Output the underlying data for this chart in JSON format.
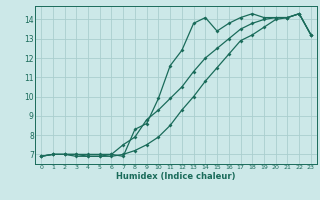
{
  "xlabel": "Humidex (Indice chaleur)",
  "bg_color": "#cce8e8",
  "grid_color": "#aacece",
  "line_color": "#1a6b5a",
  "xlim": [
    -0.5,
    23.5
  ],
  "ylim": [
    6.5,
    14.7
  ],
  "xticks": [
    0,
    1,
    2,
    3,
    4,
    5,
    6,
    7,
    8,
    9,
    10,
    11,
    12,
    13,
    14,
    15,
    16,
    17,
    18,
    19,
    20,
    21,
    22,
    23
  ],
  "yticks": [
    7,
    8,
    9,
    10,
    11,
    12,
    13,
    14
  ],
  "line1_x": [
    0,
    1,
    2,
    3,
    4,
    5,
    6,
    7,
    8,
    9,
    10,
    11,
    12,
    13,
    14,
    15,
    16,
    17,
    18,
    19,
    20,
    21,
    22,
    23
  ],
  "line1_y": [
    6.9,
    7.0,
    7.0,
    6.9,
    6.9,
    6.9,
    7.0,
    6.9,
    8.3,
    8.6,
    9.9,
    11.6,
    12.4,
    13.8,
    14.1,
    13.4,
    13.8,
    14.1,
    14.3,
    14.1,
    14.1,
    14.1,
    14.3,
    13.2
  ],
  "line2_x": [
    0,
    1,
    2,
    3,
    4,
    5,
    6,
    7,
    8,
    9,
    10,
    11,
    12,
    13,
    14,
    15,
    16,
    17,
    18,
    19,
    20,
    21,
    22,
    23
  ],
  "line2_y": [
    6.9,
    7.0,
    7.0,
    7.0,
    7.0,
    7.0,
    7.0,
    7.5,
    7.9,
    8.8,
    9.3,
    9.9,
    10.5,
    11.3,
    12.0,
    12.5,
    13.0,
    13.5,
    13.8,
    14.0,
    14.1,
    14.1,
    14.3,
    13.2
  ],
  "line3_x": [
    0,
    1,
    2,
    3,
    4,
    5,
    6,
    7,
    8,
    9,
    10,
    11,
    12,
    13,
    14,
    15,
    16,
    17,
    18,
    19,
    20,
    21,
    22,
    23
  ],
  "line3_y": [
    6.9,
    7.0,
    7.0,
    7.0,
    6.9,
    6.9,
    6.9,
    7.0,
    7.2,
    7.5,
    7.9,
    8.5,
    9.3,
    10.0,
    10.8,
    11.5,
    12.2,
    12.9,
    13.2,
    13.6,
    14.0,
    14.1,
    14.3,
    13.2
  ]
}
